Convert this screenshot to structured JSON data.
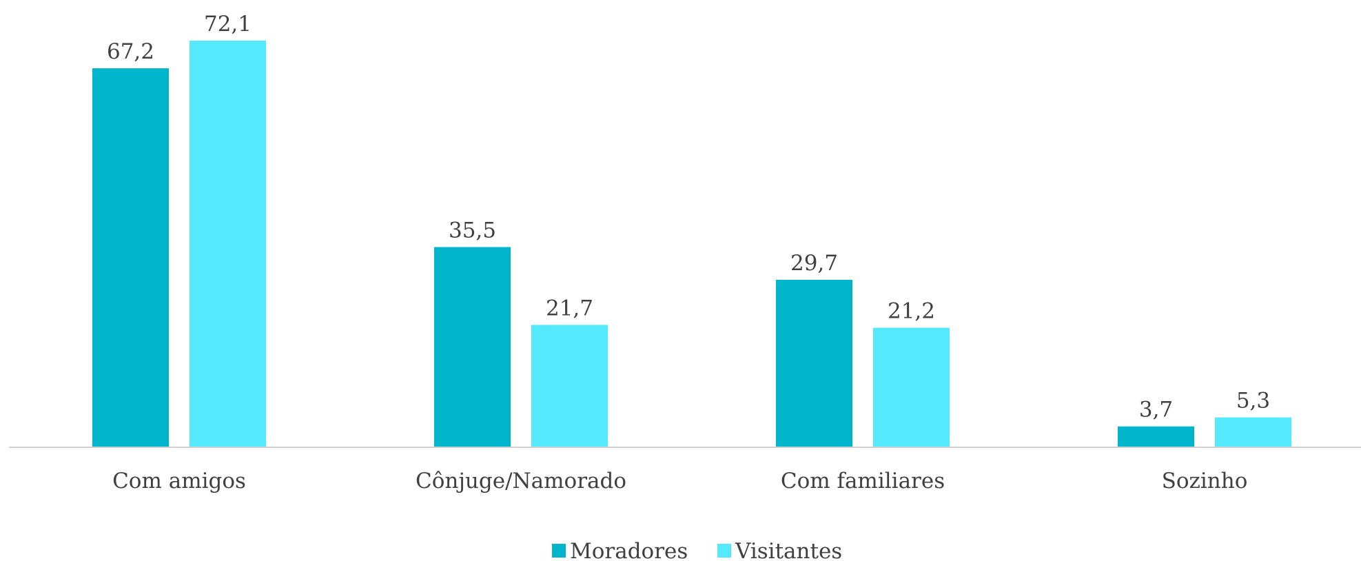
{
  "chart_data": {
    "type": "bar",
    "categories": [
      "Com amigos",
      "Cônjuge/Namorado",
      "Com familiares",
      "Sozinho"
    ],
    "series": [
      {
        "name": "Moradores",
        "color": "#00b5cc",
        "values": [
          67.2,
          35.5,
          29.7,
          3.7
        ],
        "value_labels": [
          "67,2",
          "35,5",
          "29,7",
          "3,7"
        ]
      },
      {
        "name": "Visitantes",
        "color": "#55e9ff",
        "values": [
          72.1,
          21.7,
          21.2,
          5.3
        ],
        "value_labels": [
          "72,1",
          "21,7",
          "21,2",
          "5,3"
        ]
      }
    ],
    "legend": "bottom"
  }
}
